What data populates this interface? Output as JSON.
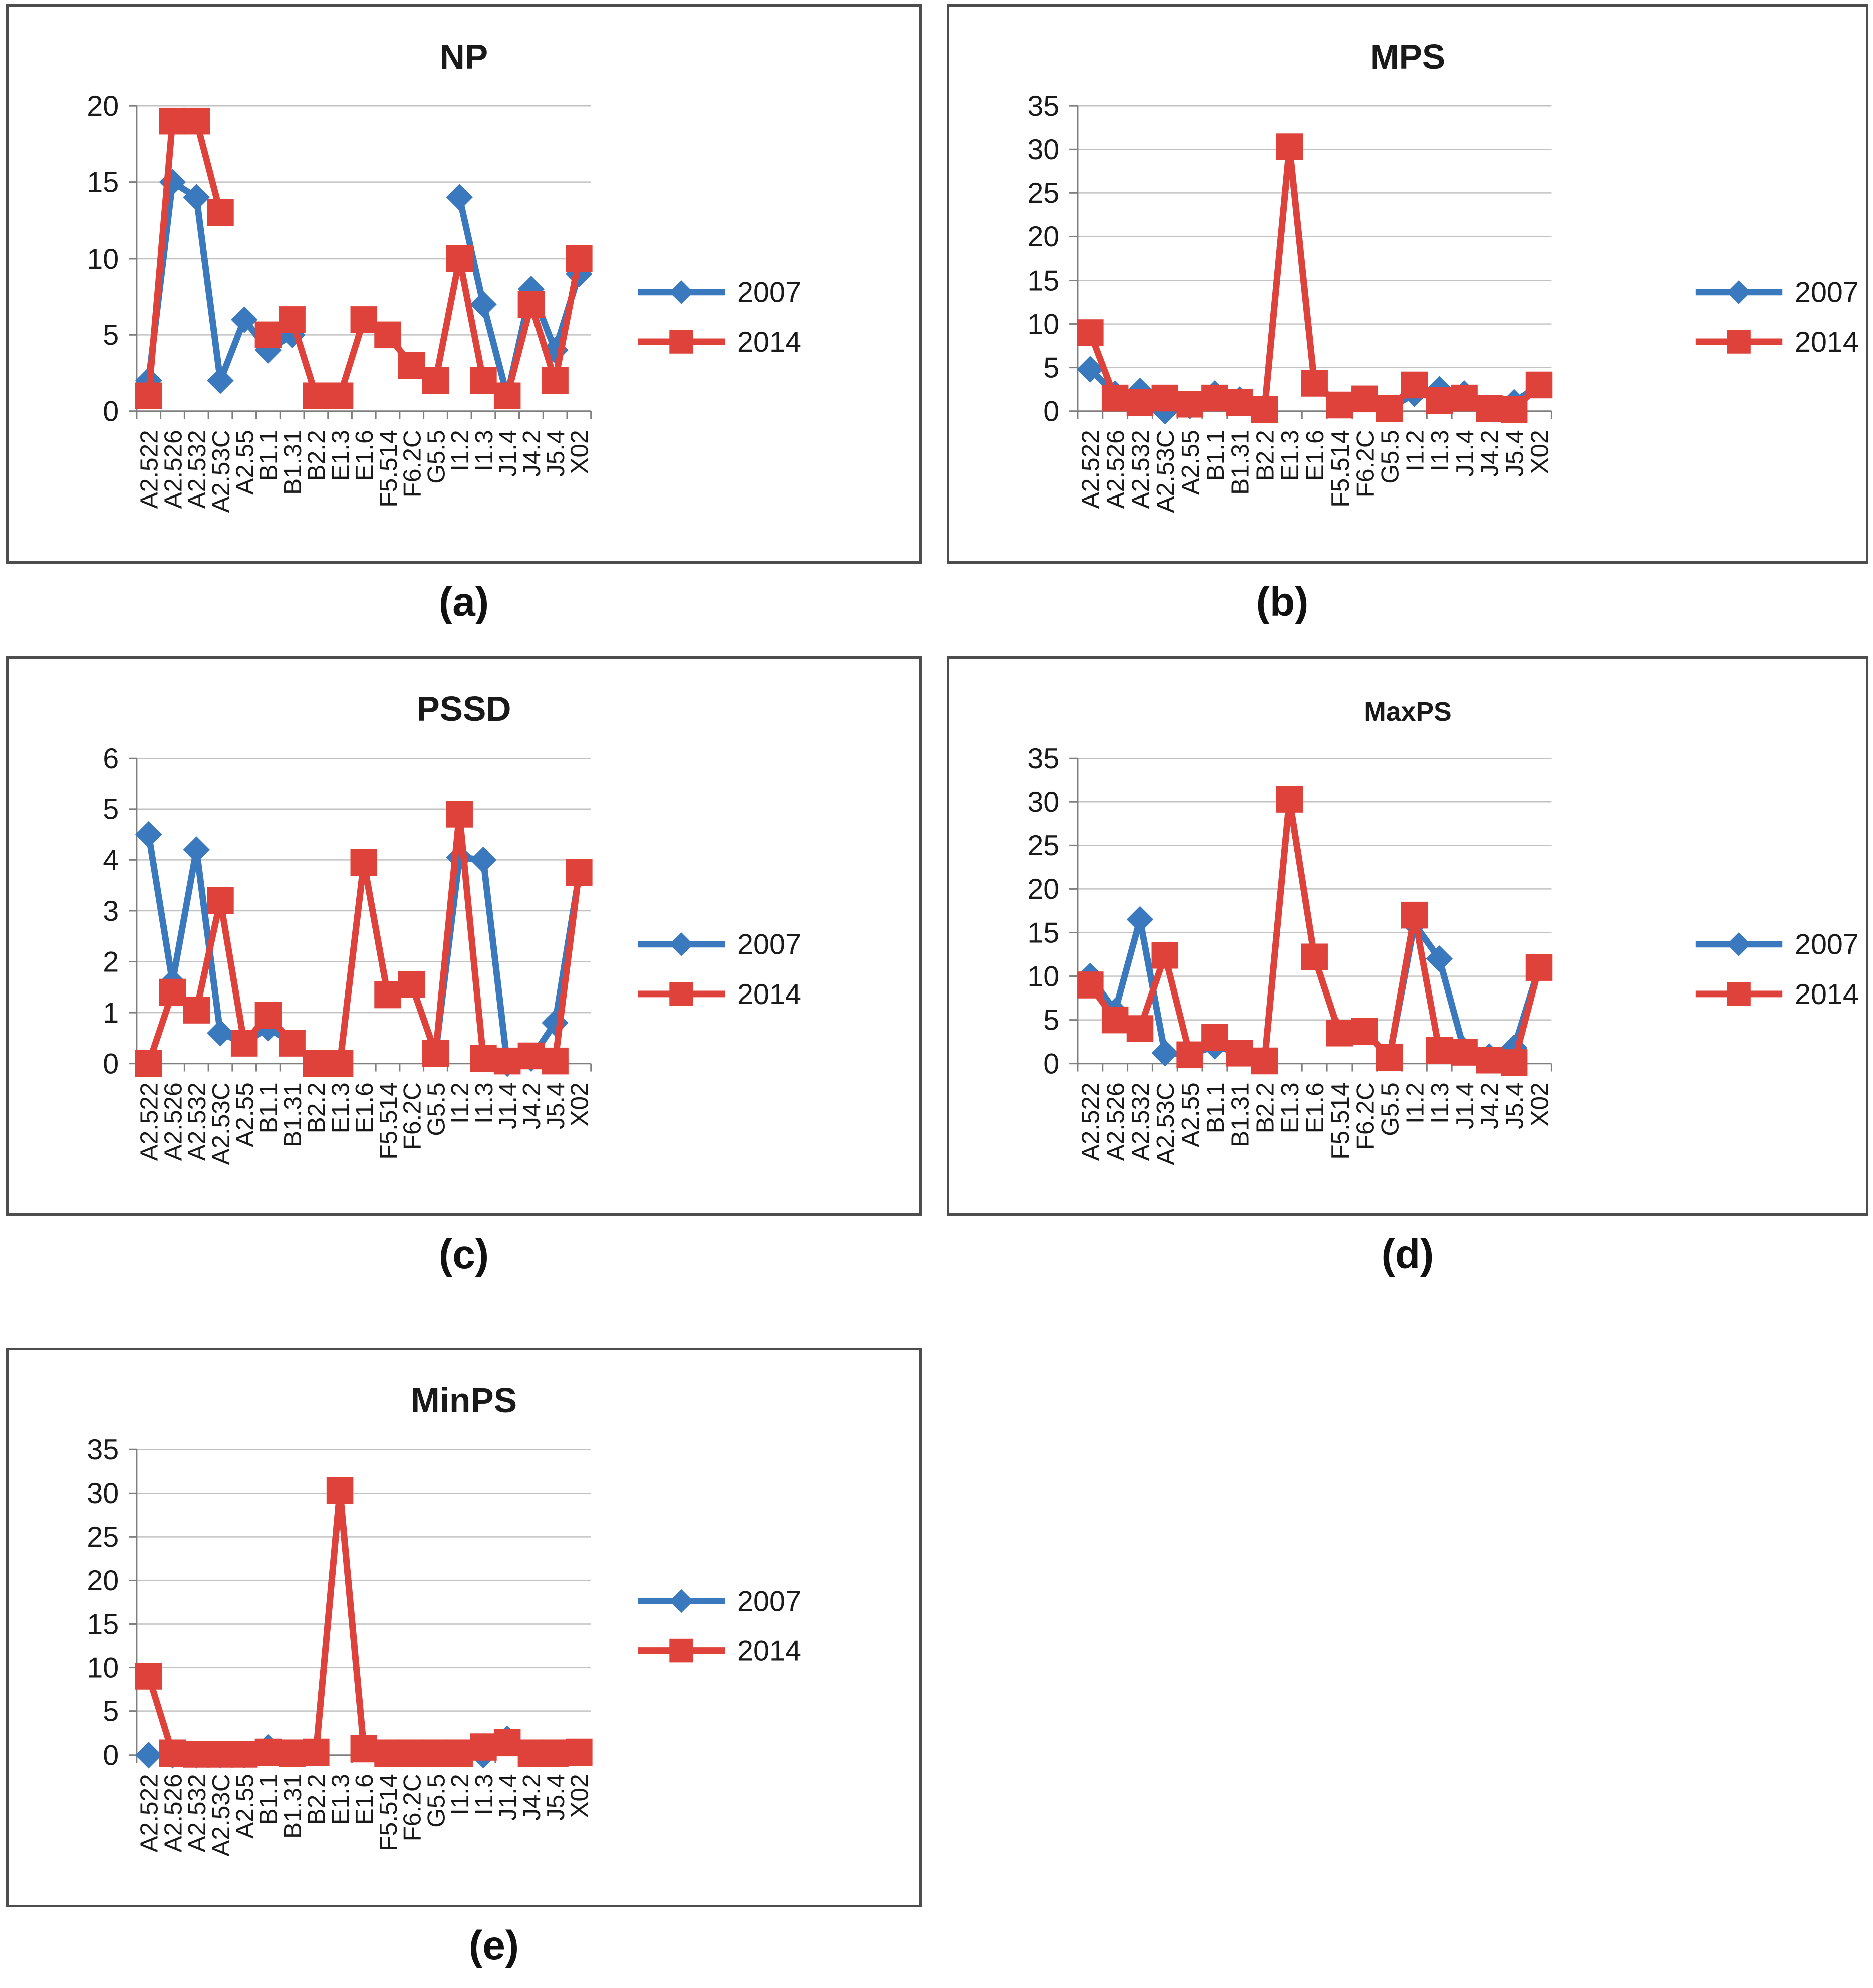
{
  "colors": {
    "series2007": "#3A79BD",
    "series2014": "#DE423B",
    "grid": "#C2C2C2",
    "axis": "#7F7F7F",
    "text": "#1A1A1A",
    "chart_border": "#4D4D4D",
    "background": "#FFFFFF"
  },
  "legend": {
    "position": "right",
    "items": [
      {
        "label": "2007",
        "marker": "diamond"
      },
      {
        "label": "2014",
        "marker": "square"
      }
    ]
  },
  "categories": [
    "A2.522",
    "A2.526",
    "A2.532",
    "A2.53C",
    "A2.55",
    "B1.1",
    "B1.31",
    "B2.2",
    "E1.3",
    "E1.6",
    "F5.514",
    "F6.2C",
    "G5.5",
    "I1.2",
    "I1.3",
    "J1.4",
    "J4.2",
    "J5.4",
    "X02"
  ],
  "chart_data": [
    {
      "id": "a",
      "type": "line",
      "title": "NP",
      "caption": "(a)",
      "ylim": [
        0,
        20
      ],
      "ystep": 5,
      "yticks": [
        "0",
        "5",
        "10",
        "15",
        "20"
      ],
      "grid": true,
      "legend_position": "right",
      "categories": [
        "A2.522",
        "A2.526",
        "A2.532",
        "A2.53C",
        "A2.55",
        "B1.1",
        "B1.31",
        "B2.2",
        "E1.3",
        "E1.6",
        "F5.514",
        "F6.2C",
        "G5.5",
        "I1.2",
        "I1.3",
        "J1.4",
        "J4.2",
        "J5.4",
        "X02"
      ],
      "series": [
        {
          "name": "2007",
          "marker": "diamond",
          "color": "#3A79BD",
          "values": [
            2,
            15,
            14,
            2,
            6,
            4,
            5,
            null,
            null,
            null,
            null,
            null,
            null,
            14,
            7,
            1,
            8,
            4,
            9
          ]
        },
        {
          "name": "2014",
          "marker": "square",
          "color": "#DE423B",
          "values": [
            1,
            19,
            19,
            13,
            null,
            5,
            6,
            1,
            1,
            6,
            5,
            3,
            2,
            10,
            2,
            1,
            7,
            2,
            10
          ]
        }
      ]
    },
    {
      "id": "b",
      "type": "line",
      "title": "MPS",
      "caption": "(b)",
      "ylim": [
        0,
        35
      ],
      "ystep": 5,
      "yticks": [
        "0",
        "5",
        "10",
        "15",
        "20",
        "25",
        "30",
        "35"
      ],
      "grid": true,
      "legend_position": "right",
      "categories": [
        "A2.522",
        "A2.526",
        "A2.532",
        "A2.53C",
        "A2.55",
        "B1.1",
        "B1.31",
        "B2.2",
        "E1.3",
        "E1.6",
        "F5.514",
        "F6.2C",
        "G5.5",
        "I1.2",
        "I1.3",
        "J1.4",
        "J4.2",
        "J5.4",
        "X02"
      ],
      "series": [
        {
          "name": "2007",
          "marker": "diamond",
          "color": "#3A79BD",
          "values": [
            4.8,
            2,
            2.3,
            0,
            0.6,
            2,
            1.3,
            0.2,
            30.3,
            3.2,
            0.7,
            1.4,
            0.3,
            2,
            2.5,
            2,
            0.3,
            1,
            3
          ]
        },
        {
          "name": "2014",
          "marker": "square",
          "color": "#DE423B",
          "values": [
            9,
            1.5,
            1,
            1.5,
            0.8,
            1.5,
            1,
            0.2,
            30.3,
            3.2,
            0.7,
            1.4,
            0.3,
            3,
            1.2,
            1.5,
            0.3,
            0.2,
            3
          ]
        }
      ]
    },
    {
      "id": "c",
      "type": "line",
      "title": "PSSD",
      "caption": "(c)",
      "ylim": [
        0,
        6
      ],
      "ystep": 1,
      "yticks": [
        "0",
        "1",
        "2",
        "3",
        "4",
        "5",
        "6"
      ],
      "grid": true,
      "legend_position": "right",
      "categories": [
        "A2.522",
        "A2.526",
        "A2.532",
        "A2.53C",
        "A2.55",
        "B1.1",
        "B1.31",
        "B2.2",
        "E1.3",
        "E1.6",
        "F5.514",
        "F6.2C",
        "G5.5",
        "I1.2",
        "I1.3",
        "J1.4",
        "J4.2",
        "J5.4",
        "X02"
      ],
      "series": [
        {
          "name": "2007",
          "marker": "diamond",
          "color": "#3A79BD",
          "values": [
            4.5,
            1.6,
            4.2,
            0.6,
            0.4,
            0.7,
            0.4,
            0,
            0,
            3.95,
            1.35,
            1.55,
            0.2,
            4.05,
            4,
            0,
            0.1,
            0.8,
            3.7
          ]
        },
        {
          "name": "2014",
          "marker": "square",
          "color": "#DE423B",
          "values": [
            0,
            1.4,
            1.05,
            3.2,
            0.4,
            0.95,
            0.4,
            0,
            0,
            3.95,
            1.35,
            1.55,
            0.2,
            4.9,
            0.1,
            0.05,
            0.15,
            0.05,
            3.75
          ]
        }
      ]
    },
    {
      "id": "d",
      "type": "line",
      "title": "MaxPS",
      "caption": "(d)",
      "ylim": [
        0,
        35
      ],
      "ystep": 5,
      "yticks": [
        "0",
        "5",
        "10",
        "15",
        "20",
        "25",
        "30",
        "35"
      ],
      "grid": true,
      "legend_position": "right",
      "categories": [
        "A2.522",
        "A2.526",
        "A2.532",
        "A2.53C",
        "A2.55",
        "B1.1",
        "B1.31",
        "B2.2",
        "E1.3",
        "E1.6",
        "F5.514",
        "F6.2C",
        "G5.5",
        "I1.2",
        "I1.3",
        "J1.4",
        "J4.2",
        "J5.4",
        "X02"
      ],
      "series": [
        {
          "name": "2007",
          "marker": "diamond",
          "color": "#3A79BD",
          "values": [
            10,
            6,
            16.5,
            1.2,
            1,
            2,
            1.2,
            0.3,
            30.3,
            12.2,
            3.5,
            3.7,
            0.7,
            16,
            12,
            1.5,
            0.8,
            1.8,
            11
          ]
        },
        {
          "name": "2014",
          "marker": "square",
          "color": "#DE423B",
          "values": [
            9,
            5,
            4,
            12.4,
            1,
            3,
            1.2,
            0.3,
            30.3,
            12.2,
            3.5,
            3.7,
            0.7,
            17,
            1.5,
            1.3,
            0.4,
            0.1,
            11
          ]
        }
      ]
    },
    {
      "id": "e",
      "type": "line",
      "title": "MinPS",
      "caption": "(e)",
      "ylim": [
        0,
        35
      ],
      "ystep": 5,
      "yticks": [
        "0",
        "5",
        "10",
        "15",
        "20",
        "25",
        "30",
        "35"
      ],
      "grid": true,
      "legend_position": "right",
      "categories": [
        "A2.522",
        "A2.526",
        "A2.532",
        "A2.53C",
        "A2.55",
        "B1.1",
        "B1.31",
        "B2.2",
        "E1.3",
        "E1.6",
        "F5.514",
        "F6.2C",
        "G5.5",
        "I1.2",
        "I1.3",
        "J1.4",
        "J4.2",
        "J5.4",
        "X02"
      ],
      "series": [
        {
          "name": "2007",
          "marker": "diamond",
          "color": "#3A79BD",
          "values": [
            0,
            0,
            0,
            0,
            0,
            0.8,
            0.2,
            0.3,
            30.3,
            0.7,
            0.2,
            0.2,
            0.2,
            0.2,
            0,
            1.8,
            0.2,
            0.2,
            0.3
          ]
        },
        {
          "name": "2014",
          "marker": "square",
          "color": "#DE423B",
          "values": [
            9,
            0.2,
            0.1,
            0.1,
            0.1,
            0.3,
            0.2,
            0.3,
            30.3,
            0.7,
            0.2,
            0.2,
            0.2,
            0.2,
            0.9,
            1.4,
            0.2,
            0.2,
            0.3
          ]
        }
      ]
    }
  ]
}
